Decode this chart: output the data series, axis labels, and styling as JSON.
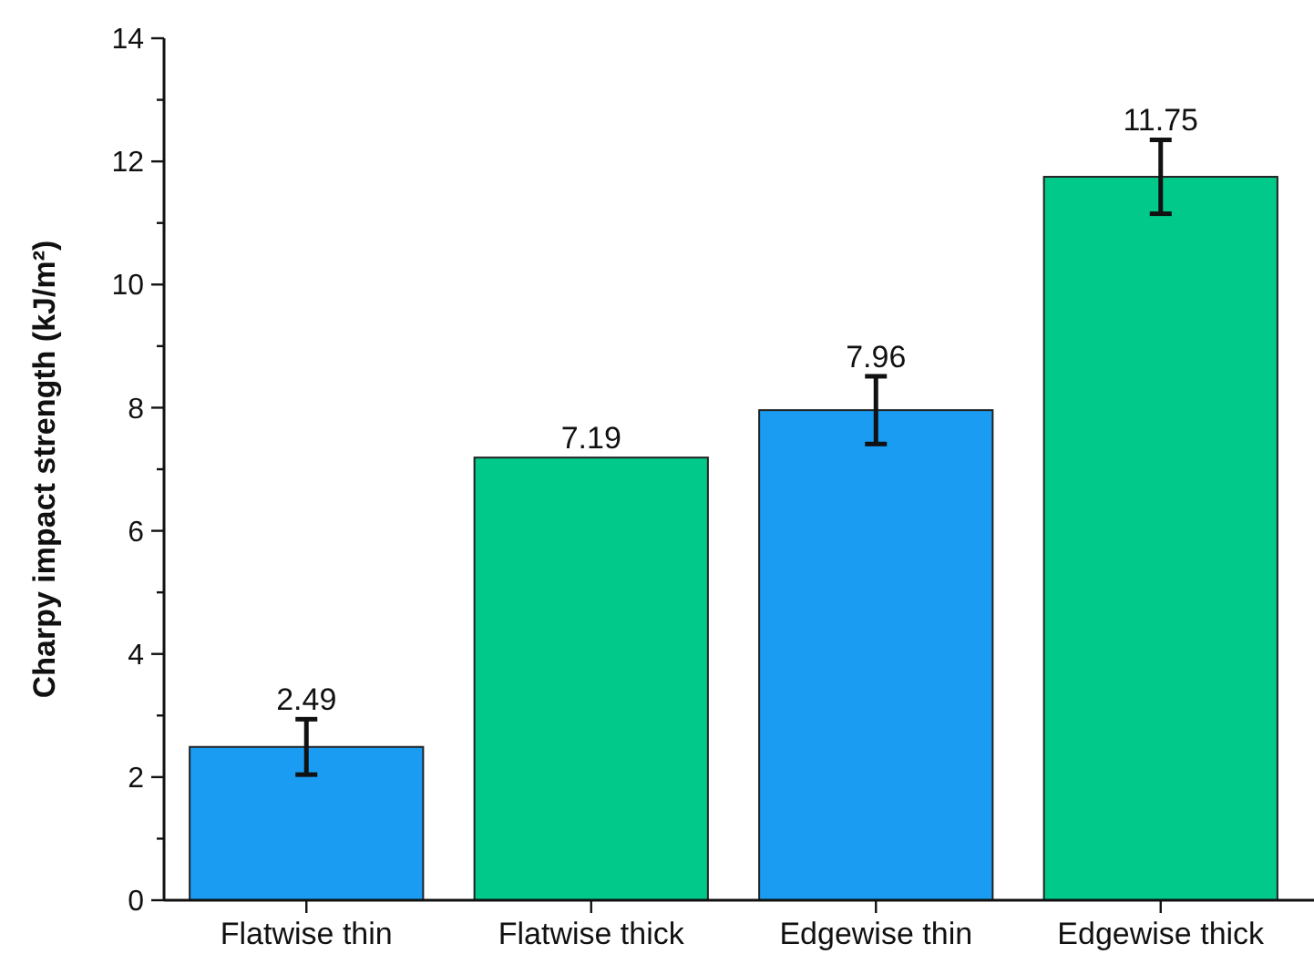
{
  "chart_data": {
    "type": "bar",
    "ylabel": "Charpy impact strength (kJ/m²)",
    "categories": [
      "Flatwise thin",
      "Flatwise thick",
      "Edgewise thin",
      "Edgewise thick"
    ],
    "values": [
      2.49,
      7.19,
      7.96,
      11.75
    ],
    "errors": [
      0.45,
      null,
      0.55,
      0.6
    ],
    "colors": [
      "#1a9cf2",
      "#00c98a",
      "#1a9cf2",
      "#00c98a"
    ],
    "ylim": [
      0,
      14
    ],
    "yticks": [
      0,
      {
        "value": 1,
        "label": null
      },
      2,
      {
        "value": 3,
        "label": null
      },
      4,
      {
        "value": 5,
        "label": null
      },
      6,
      {
        "value": 7,
        "label": null
      },
      8,
      {
        "value": 9,
        "label": null
      },
      10,
      {
        "value": 11,
        "label": null
      },
      12,
      {
        "value": 13,
        "label": null
      },
      14
    ],
    "data_labels": true
  }
}
